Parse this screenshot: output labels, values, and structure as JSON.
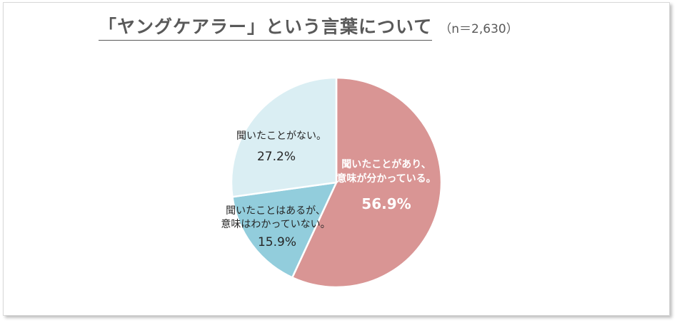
{
  "chart_data": {
    "type": "pie",
    "title": "「ヤングケアラー」という言葉について",
    "subtitle": "（n＝2,630）",
    "slices": [
      {
        "label_lines": [
          "聞いたことがあり、",
          "意味が分かっている。"
        ],
        "value": 56.9,
        "value_label": "56.9%",
        "color": "#d99594",
        "text_color": "#ffffff"
      },
      {
        "label_lines": [
          "聞いたことはあるが、",
          "意味はわかっていない。"
        ],
        "value": 15.9,
        "value_label": "15.9%",
        "color": "#92cddc",
        "text_color": "#262626"
      },
      {
        "label_lines": [
          "聞いたことがない。"
        ],
        "value": 27.2,
        "value_label": "27.2%",
        "color": "#daeef3",
        "text_color": "#262626"
      }
    ],
    "start_angle": "12 o'clock",
    "direction": "clockwise",
    "legend": "none"
  }
}
